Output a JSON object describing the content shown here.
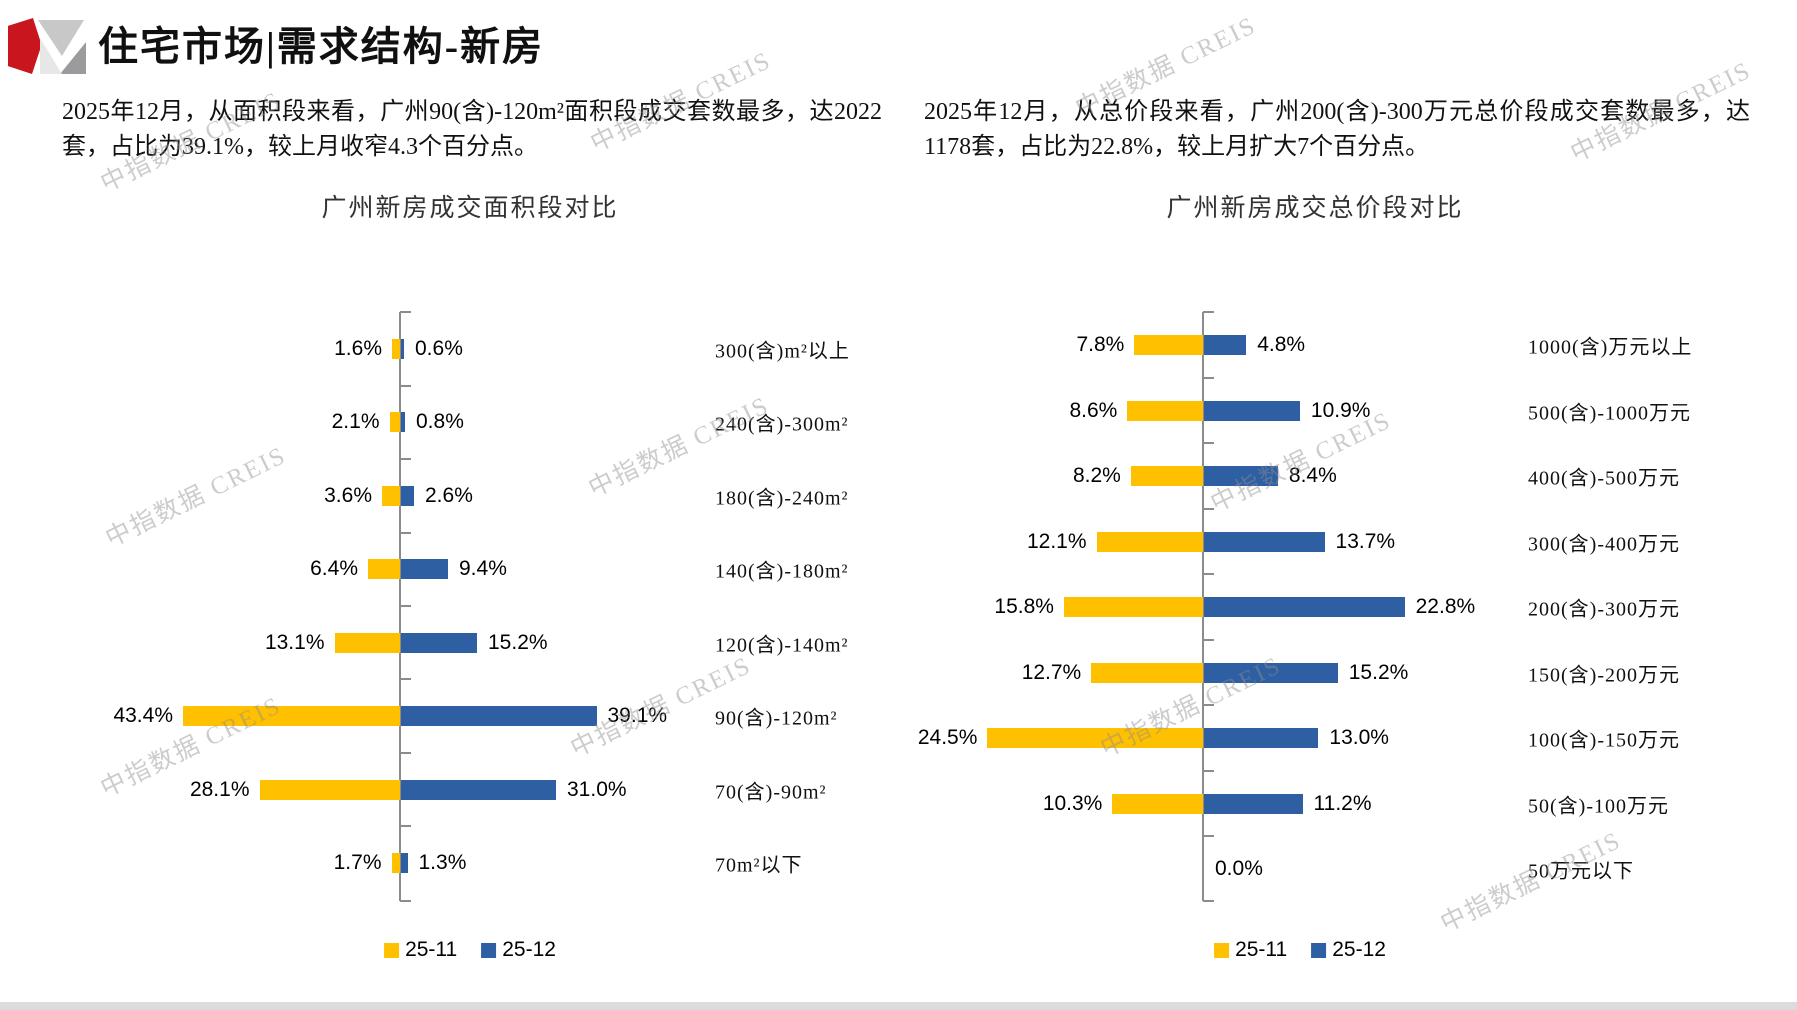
{
  "header": {
    "title": "住宅市场|需求结构-新房"
  },
  "watermark": {
    "text": "中指数据 CREIS"
  },
  "summaries": {
    "left": "2025年12月，从面积段来看，广州90(含)-120m²面积段成交套数最多，达2022套，占比为39.1%，较上月收窄4.3个百分点。",
    "right": "2025年12月，从总价段来看，广州200(含)-300万元总价段成交套数最多，达1178套，占比为22.8%，较上月扩大7个百分点。"
  },
  "legend": {
    "series1": "25-11",
    "series2": "25-12"
  },
  "colors": {
    "series1": "#FFC000",
    "series2": "#2E5FA3",
    "axis": "#8C8C8C",
    "logo_red": "#C9151E",
    "logo_gray_light": "#C8C8C8",
    "logo_gray_dark": "#9B9B9D",
    "watermark": "#8F8F8F"
  },
  "chart_data": [
    {
      "type": "bar",
      "variant": "butterfly",
      "title": "广州新房成交面积段对比",
      "unit": "%",
      "legend_position": "bottom",
      "categories": [
        "300(含)m²以上",
        "240(含)-300m²",
        "180(含)-240m²",
        "140(含)-180m²",
        "120(含)-140m²",
        "90(含)-120m²",
        "70(含)-90m²",
        "70m²以下"
      ],
      "series": [
        {
          "name": "25-11",
          "values": [
            1.6,
            2.1,
            3.6,
            6.4,
            13.1,
            43.4,
            28.1,
            1.7
          ]
        },
        {
          "name": "25-12",
          "values": [
            0.6,
            0.8,
            2.6,
            9.4,
            15.2,
            39.1,
            31.0,
            1.3
          ]
        }
      ]
    },
    {
      "type": "bar",
      "variant": "butterfly",
      "title": "广州新房成交总价段对比",
      "unit": "%",
      "legend_position": "bottom",
      "categories": [
        "1000(含)万元以上",
        "500(含)-1000万元",
        "400(含)-500万元",
        "300(含)-400万元",
        "200(含)-300万元",
        "150(含)-200万元",
        "100(含)-150万元",
        "50(含)-100万元",
        "50万元以下"
      ],
      "series": [
        {
          "name": "25-11",
          "values": [
            7.8,
            8.6,
            8.2,
            12.1,
            15.8,
            12.7,
            24.5,
            10.3,
            0.0
          ]
        },
        {
          "name": "25-12",
          "values": [
            4.8,
            10.9,
            8.4,
            13.7,
            22.8,
            15.2,
            13.0,
            11.2,
            0.0
          ]
        }
      ]
    }
  ]
}
